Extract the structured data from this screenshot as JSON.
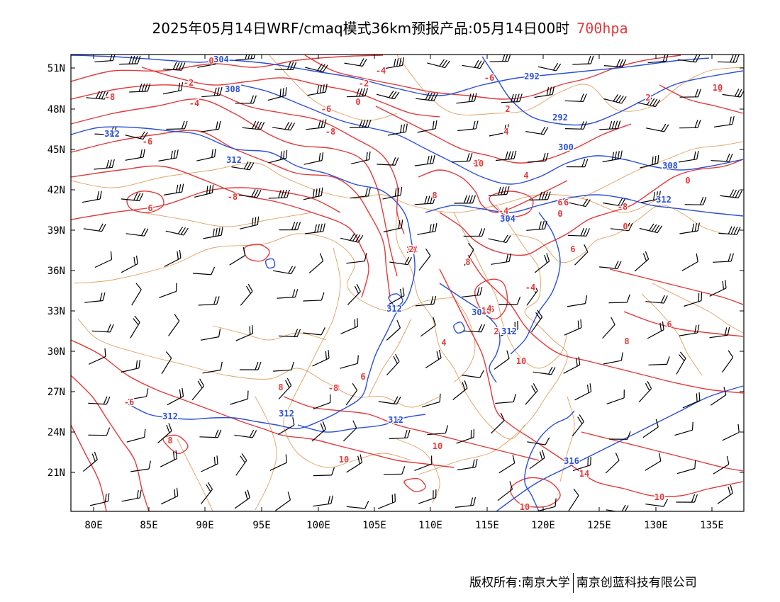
{
  "title": {
    "text": "2025年05月14日WRF/cmaq模式36km预报产品:05月14日00时",
    "level": "700hpa",
    "level_color": "#e23a3a"
  },
  "map": {
    "lat_labels": [
      "51N",
      "48N",
      "45N",
      "42N",
      "39N",
      "36N",
      "33N",
      "30N",
      "27N",
      "24N",
      "21N"
    ],
    "lon_labels": [
      "80E",
      "85E",
      "90E",
      "95E",
      "100E",
      "105E",
      "110E",
      "115E",
      "120E",
      "125E",
      "130E",
      "135E"
    ],
    "height_color": "#2a4fd8",
    "temperature_color": "#e23a3a",
    "boundary_color": "#e0a060",
    "height_labels": [
      "304",
      "308",
      "292",
      "292",
      "312",
      "312",
      "300",
      "308",
      "312",
      "304",
      "312",
      "308",
      "312",
      "312",
      "312",
      "312",
      "316"
    ],
    "temperature_labels": [
      "0",
      "-4",
      "-2",
      "-6",
      "-2",
      "-8",
      "0",
      "2",
      "-4",
      "-6",
      "-8",
      "4",
      "-6",
      "2",
      "-8",
      "-2",
      "4",
      "0",
      "-8",
      "8",
      "6",
      "-4",
      "-6",
      "0",
      "-8",
      "0",
      "-2",
      "6",
      "8",
      "-6",
      "-4",
      "2",
      "4",
      "6",
      "8",
      "10",
      "-8",
      "6",
      "8",
      "8",
      "-6",
      "10",
      "10",
      "14",
      "10",
      "10",
      "10",
      "10",
      "10",
      "10",
      "6",
      "-8",
      "2",
      "4"
    ]
  },
  "footer": {
    "copyright": "版权所有:南京大学",
    "company": "南京创蓝科技有限公司"
  }
}
